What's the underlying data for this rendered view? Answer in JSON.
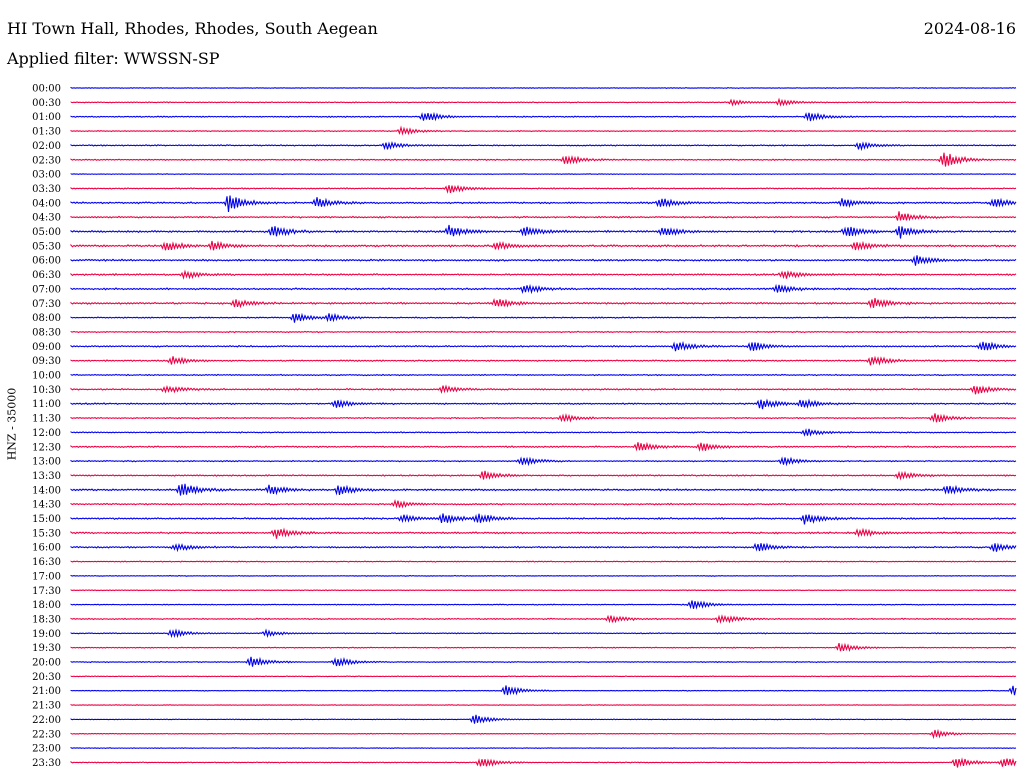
{
  "header": {
    "station": "HI Town Hall, Rhodes, Rhodes, South Aegean",
    "date": "2024-08-16",
    "filter_label": "Applied filter:",
    "filter_value": "WWSSN-SP",
    "filter_text": "Applied filter: WWSSN-SP"
  },
  "colors": {
    "trace_even": "#0000ee",
    "trace_odd": "#ee0044",
    "background": "#ffffff"
  },
  "chart_data": {
    "type": "line",
    "title": "HI Town Hall, Rhodes, Rhodes, South Aegean",
    "ylabel": "HNZ - 35000",
    "grid": false,
    "legend": "none",
    "y_tick_labels": [
      "00:00",
      "00:30",
      "01:00",
      "01:30",
      "02:00",
      "02:30",
      "03:00",
      "03:30",
      "04:00",
      "04:30",
      "05:00",
      "05:30",
      "06:00",
      "06:30",
      "07:00",
      "07:30",
      "08:00",
      "08:30",
      "09:00",
      "09:30",
      "10:00",
      "10:30",
      "11:00",
      "11:30",
      "12:00",
      "12:30",
      "13:00",
      "13:30",
      "14:00",
      "14:30",
      "15:00",
      "15:30",
      "16:00",
      "16:30",
      "17:00",
      "17:30",
      "18:00",
      "18:30",
      "19:00",
      "19:30",
      "20:00",
      "20:30",
      "21:00",
      "21:30",
      "22:00",
      "22:30",
      "23:00",
      "23:30"
    ],
    "x_unit": "minutes within row",
    "xlim": [
      0,
      30
    ],
    "noise_level": [
      0.3,
      0.4,
      0.5,
      0.4,
      0.5,
      0.5,
      0.3,
      0.5,
      0.7,
      0.6,
      0.8,
      0.8,
      0.7,
      0.7,
      0.7,
      0.7,
      0.5,
      0.5,
      0.6,
      0.6,
      0.5,
      0.6,
      0.6,
      0.5,
      0.5,
      0.6,
      0.5,
      0.6,
      0.7,
      0.6,
      0.7,
      0.7,
      0.6,
      0.4,
      0.3,
      0.3,
      0.4,
      0.5,
      0.4,
      0.4,
      0.4,
      0.3,
      0.3,
      0.3,
      0.3,
      0.3,
      0.3,
      0.4
    ],
    "events": [
      {
        "row": 1,
        "t": 21.0,
        "amp": 3
      },
      {
        "row": 1,
        "t": 22.5,
        "amp": 3
      },
      {
        "row": 2,
        "t": 11.2,
        "amp": 6
      },
      {
        "row": 2,
        "t": 23.4,
        "amp": 5
      },
      {
        "row": 3,
        "t": 10.5,
        "amp": 4
      },
      {
        "row": 4,
        "t": 10.0,
        "amp": 4
      },
      {
        "row": 4,
        "t": 25.0,
        "amp": 4
      },
      {
        "row": 5,
        "t": 15.7,
        "amp": 5
      },
      {
        "row": 5,
        "t": 27.7,
        "amp": 9
      },
      {
        "row": 7,
        "t": 12.0,
        "amp": 5
      },
      {
        "row": 8,
        "t": 5.0,
        "amp": 9
      },
      {
        "row": 8,
        "t": 7.8,
        "amp": 5
      },
      {
        "row": 8,
        "t": 18.7,
        "amp": 5
      },
      {
        "row": 8,
        "t": 24.5,
        "amp": 5
      },
      {
        "row": 8,
        "t": 29.3,
        "amp": 5
      },
      {
        "row": 9,
        "t": 26.3,
        "amp": 6
      },
      {
        "row": 10,
        "t": 6.4,
        "amp": 6
      },
      {
        "row": 10,
        "t": 12.0,
        "amp": 6
      },
      {
        "row": 10,
        "t": 14.4,
        "amp": 6
      },
      {
        "row": 10,
        "t": 18.8,
        "amp": 5
      },
      {
        "row": 10,
        "t": 24.6,
        "amp": 6
      },
      {
        "row": 10,
        "t": 26.3,
        "amp": 7
      },
      {
        "row": 11,
        "t": 3.0,
        "amp": 5
      },
      {
        "row": 11,
        "t": 4.5,
        "amp": 5
      },
      {
        "row": 11,
        "t": 13.5,
        "amp": 4
      },
      {
        "row": 11,
        "t": 24.9,
        "amp": 4
      },
      {
        "row": 12,
        "t": 26.8,
        "amp": 5
      },
      {
        "row": 13,
        "t": 3.6,
        "amp": 4
      },
      {
        "row": 13,
        "t": 22.6,
        "amp": 5
      },
      {
        "row": 14,
        "t": 14.4,
        "amp": 5
      },
      {
        "row": 14,
        "t": 22.4,
        "amp": 5
      },
      {
        "row": 15,
        "t": 5.2,
        "amp": 4
      },
      {
        "row": 15,
        "t": 13.5,
        "amp": 5
      },
      {
        "row": 15,
        "t": 25.4,
        "amp": 6
      },
      {
        "row": 16,
        "t": 7.1,
        "amp": 5
      },
      {
        "row": 16,
        "t": 8.2,
        "amp": 4
      },
      {
        "row": 18,
        "t": 19.2,
        "amp": 5
      },
      {
        "row": 18,
        "t": 21.6,
        "amp": 5
      },
      {
        "row": 18,
        "t": 28.9,
        "amp": 6
      },
      {
        "row": 19,
        "t": 3.2,
        "amp": 4
      },
      {
        "row": 19,
        "t": 25.4,
        "amp": 5
      },
      {
        "row": 21,
        "t": 3.0,
        "amp": 4
      },
      {
        "row": 21,
        "t": 11.8,
        "amp": 4
      },
      {
        "row": 21,
        "t": 28.7,
        "amp": 5
      },
      {
        "row": 22,
        "t": 8.4,
        "amp": 4
      },
      {
        "row": 22,
        "t": 21.9,
        "amp": 6
      },
      {
        "row": 22,
        "t": 23.2,
        "amp": 5
      },
      {
        "row": 23,
        "t": 15.6,
        "amp": 4
      },
      {
        "row": 23,
        "t": 27.4,
        "amp": 5
      },
      {
        "row": 24,
        "t": 23.3,
        "amp": 4
      },
      {
        "row": 25,
        "t": 18.0,
        "amp": 5
      },
      {
        "row": 25,
        "t": 20.0,
        "amp": 5
      },
      {
        "row": 26,
        "t": 14.3,
        "amp": 5
      },
      {
        "row": 26,
        "t": 22.6,
        "amp": 4
      },
      {
        "row": 27,
        "t": 13.1,
        "amp": 5
      },
      {
        "row": 27,
        "t": 26.3,
        "amp": 4
      },
      {
        "row": 28,
        "t": 3.5,
        "amp": 8
      },
      {
        "row": 28,
        "t": 6.3,
        "amp": 5
      },
      {
        "row": 28,
        "t": 8.5,
        "amp": 6
      },
      {
        "row": 28,
        "t": 27.8,
        "amp": 5
      },
      {
        "row": 29,
        "t": 10.3,
        "amp": 4
      },
      {
        "row": 30,
        "t": 10.5,
        "amp": 4
      },
      {
        "row": 30,
        "t": 11.8,
        "amp": 5
      },
      {
        "row": 30,
        "t": 12.9,
        "amp": 5
      },
      {
        "row": 30,
        "t": 23.3,
        "amp": 6
      },
      {
        "row": 31,
        "t": 6.5,
        "amp": 6
      },
      {
        "row": 31,
        "t": 25.0,
        "amp": 4
      },
      {
        "row": 32,
        "t": 3.3,
        "amp": 4
      },
      {
        "row": 32,
        "t": 21.8,
        "amp": 5
      },
      {
        "row": 32,
        "t": 29.3,
        "amp": 5
      },
      {
        "row": 36,
        "t": 19.7,
        "amp": 5
      },
      {
        "row": 37,
        "t": 17.1,
        "amp": 4
      },
      {
        "row": 37,
        "t": 20.6,
        "amp": 5
      },
      {
        "row": 38,
        "t": 3.2,
        "amp": 4
      },
      {
        "row": 38,
        "t": 6.2,
        "amp": 3
      },
      {
        "row": 39,
        "t": 24.4,
        "amp": 5
      },
      {
        "row": 40,
        "t": 5.7,
        "amp": 6
      },
      {
        "row": 40,
        "t": 8.4,
        "amp": 5
      },
      {
        "row": 42,
        "t": 13.8,
        "amp": 6
      },
      {
        "row": 42,
        "t": 29.9,
        "amp": 5
      },
      {
        "row": 44,
        "t": 12.8,
        "amp": 5
      },
      {
        "row": 45,
        "t": 27.4,
        "amp": 4
      },
      {
        "row": 47,
        "t": 13.0,
        "amp": 6
      },
      {
        "row": 47,
        "t": 28.1,
        "amp": 6
      },
      {
        "row": 47,
        "t": 29.6,
        "amp": 5
      }
    ]
  }
}
